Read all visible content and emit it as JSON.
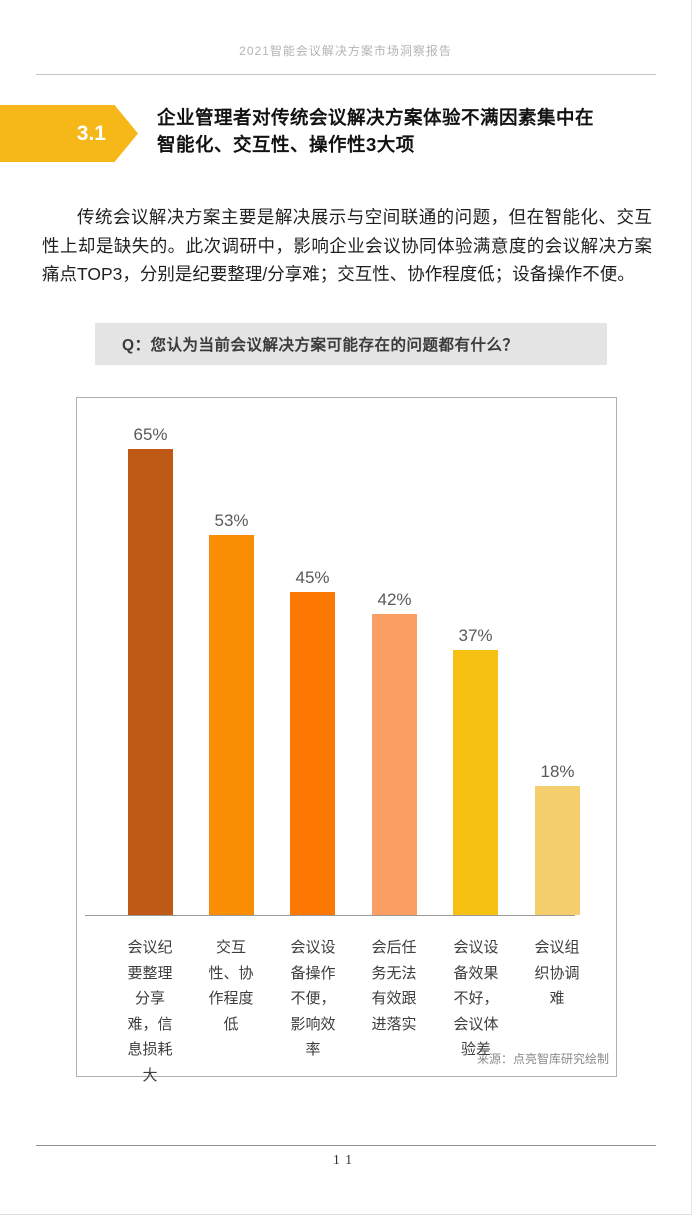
{
  "header": {
    "title": "2021智能会议解决方案市场洞察报告"
  },
  "section": {
    "badge_label": "3.1",
    "badge_color": "#F6B818",
    "title_line1": "企业管理者对传统会议解决方案体验不满因素集中在",
    "title_line2": "智能化、交互性、操作性3大项"
  },
  "paragraph": {
    "text": "传统会议解决方案主要是解决展示与空间联通的问题，但在智能化、交互性上却是缺失的。此次调研中，影响企业会议协同体验满意度的会议解决方案痛点TOP3，分别是纪要整理/分享难；交互性、协作程度低；设备操作不便。"
  },
  "question_banner": {
    "text": "Q：您认为当前会议解决方案可能存在的问题都有什么？"
  },
  "chart_data": {
    "type": "bar",
    "title": "Q：您认为当前会议解决方案可能存在的问题都有什么？",
    "categories": [
      "会议纪要整理分享难，信息损耗大",
      "交互性、协作程度低",
      "会议设备操作不便，影响效率",
      "会后任务无法有效跟进落实",
      "会议设备效果不好，会议体验差",
      "会议组织协调难"
    ],
    "values": [
      65,
      53,
      45,
      42,
      37,
      18
    ],
    "value_labels": [
      "65%",
      "53%",
      "45%",
      "42%",
      "37%",
      "18%"
    ],
    "bar_colors": [
      "#BE5A15",
      "#F98E04",
      "#FD7803",
      "#FA9E64",
      "#F6C112",
      "#F5CF6E"
    ],
    "unit": "%",
    "ylim": [
      0,
      72
    ],
    "grid": false,
    "legend": null,
    "source": "来源：点亮智库研究绘制"
  },
  "footer": {
    "page_number": "11"
  }
}
